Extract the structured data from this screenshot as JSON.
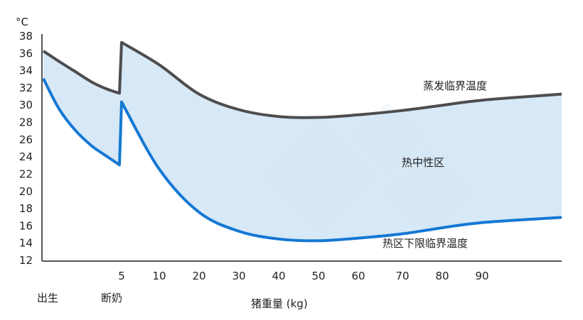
{
  "chart_data": {
    "type": "area",
    "ylabel": "°C",
    "xlabel": "猪重量 (kg)",
    "ylim": [
      12,
      38
    ],
    "y_ticks": [
      12,
      14,
      16,
      18,
      20,
      22,
      24,
      26,
      28,
      30,
      32,
      34,
      36,
      38
    ],
    "x_ticks": [
      "5",
      "10",
      "20",
      "30",
      "40",
      "50",
      "60",
      "70",
      "80",
      "90"
    ],
    "x_stage_labels": [
      "出生",
      "断奶"
    ],
    "series": [
      {
        "name": "蒸发临界温度",
        "color": "#4d4d4f",
        "points": [
          [
            "出生",
            36.2
          ],
          [
            "1",
            35.0
          ],
          [
            "2",
            33.8
          ],
          [
            "3",
            32.6
          ],
          [
            "4",
            31.8
          ],
          [
            "断奶前",
            31.3
          ],
          [
            "5",
            37.2
          ],
          [
            "10",
            34.6
          ],
          [
            "20",
            31.2
          ],
          [
            "30",
            29.4
          ],
          [
            "40",
            28.6
          ],
          [
            "50",
            28.5
          ],
          [
            "60",
            28.8
          ],
          [
            "70",
            29.3
          ],
          [
            "80",
            29.9
          ],
          [
            "90",
            30.5
          ],
          [
            "末端",
            31.2
          ]
        ]
      },
      {
        "name": "热区下限临界温度",
        "color": "#1478d4",
        "points": [
          [
            "出生",
            33.0
          ],
          [
            "1",
            29.5
          ],
          [
            "2",
            27.0
          ],
          [
            "3",
            25.2
          ],
          [
            "4",
            24.0
          ],
          [
            "断奶前",
            23.0
          ],
          [
            "5",
            30.3
          ],
          [
            "10",
            22.5
          ],
          [
            "20",
            17.5
          ],
          [
            "30",
            15.3
          ],
          [
            "40",
            14.4
          ],
          [
            "50",
            14.2
          ],
          [
            "60",
            14.5
          ],
          [
            "70",
            15.0
          ],
          [
            "80",
            15.7
          ],
          [
            "90",
            16.3
          ],
          [
            "末端",
            16.9
          ]
        ]
      }
    ],
    "band": {
      "label": "热中性区",
      "fill": "#d3e6f5"
    },
    "grid": false
  }
}
